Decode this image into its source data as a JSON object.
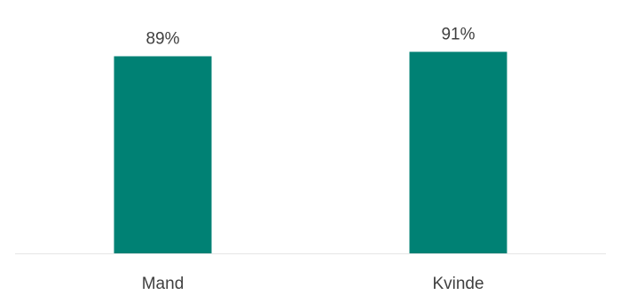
{
  "chart_data": {
    "type": "bar",
    "categories": [
      "Mand",
      "Kvinde"
    ],
    "values": [
      89,
      91
    ],
    "data_labels": [
      "89%",
      "91%"
    ],
    "ylim": [
      0,
      100
    ],
    "bar_color": "#008174",
    "grid": false,
    "legend": "none"
  }
}
